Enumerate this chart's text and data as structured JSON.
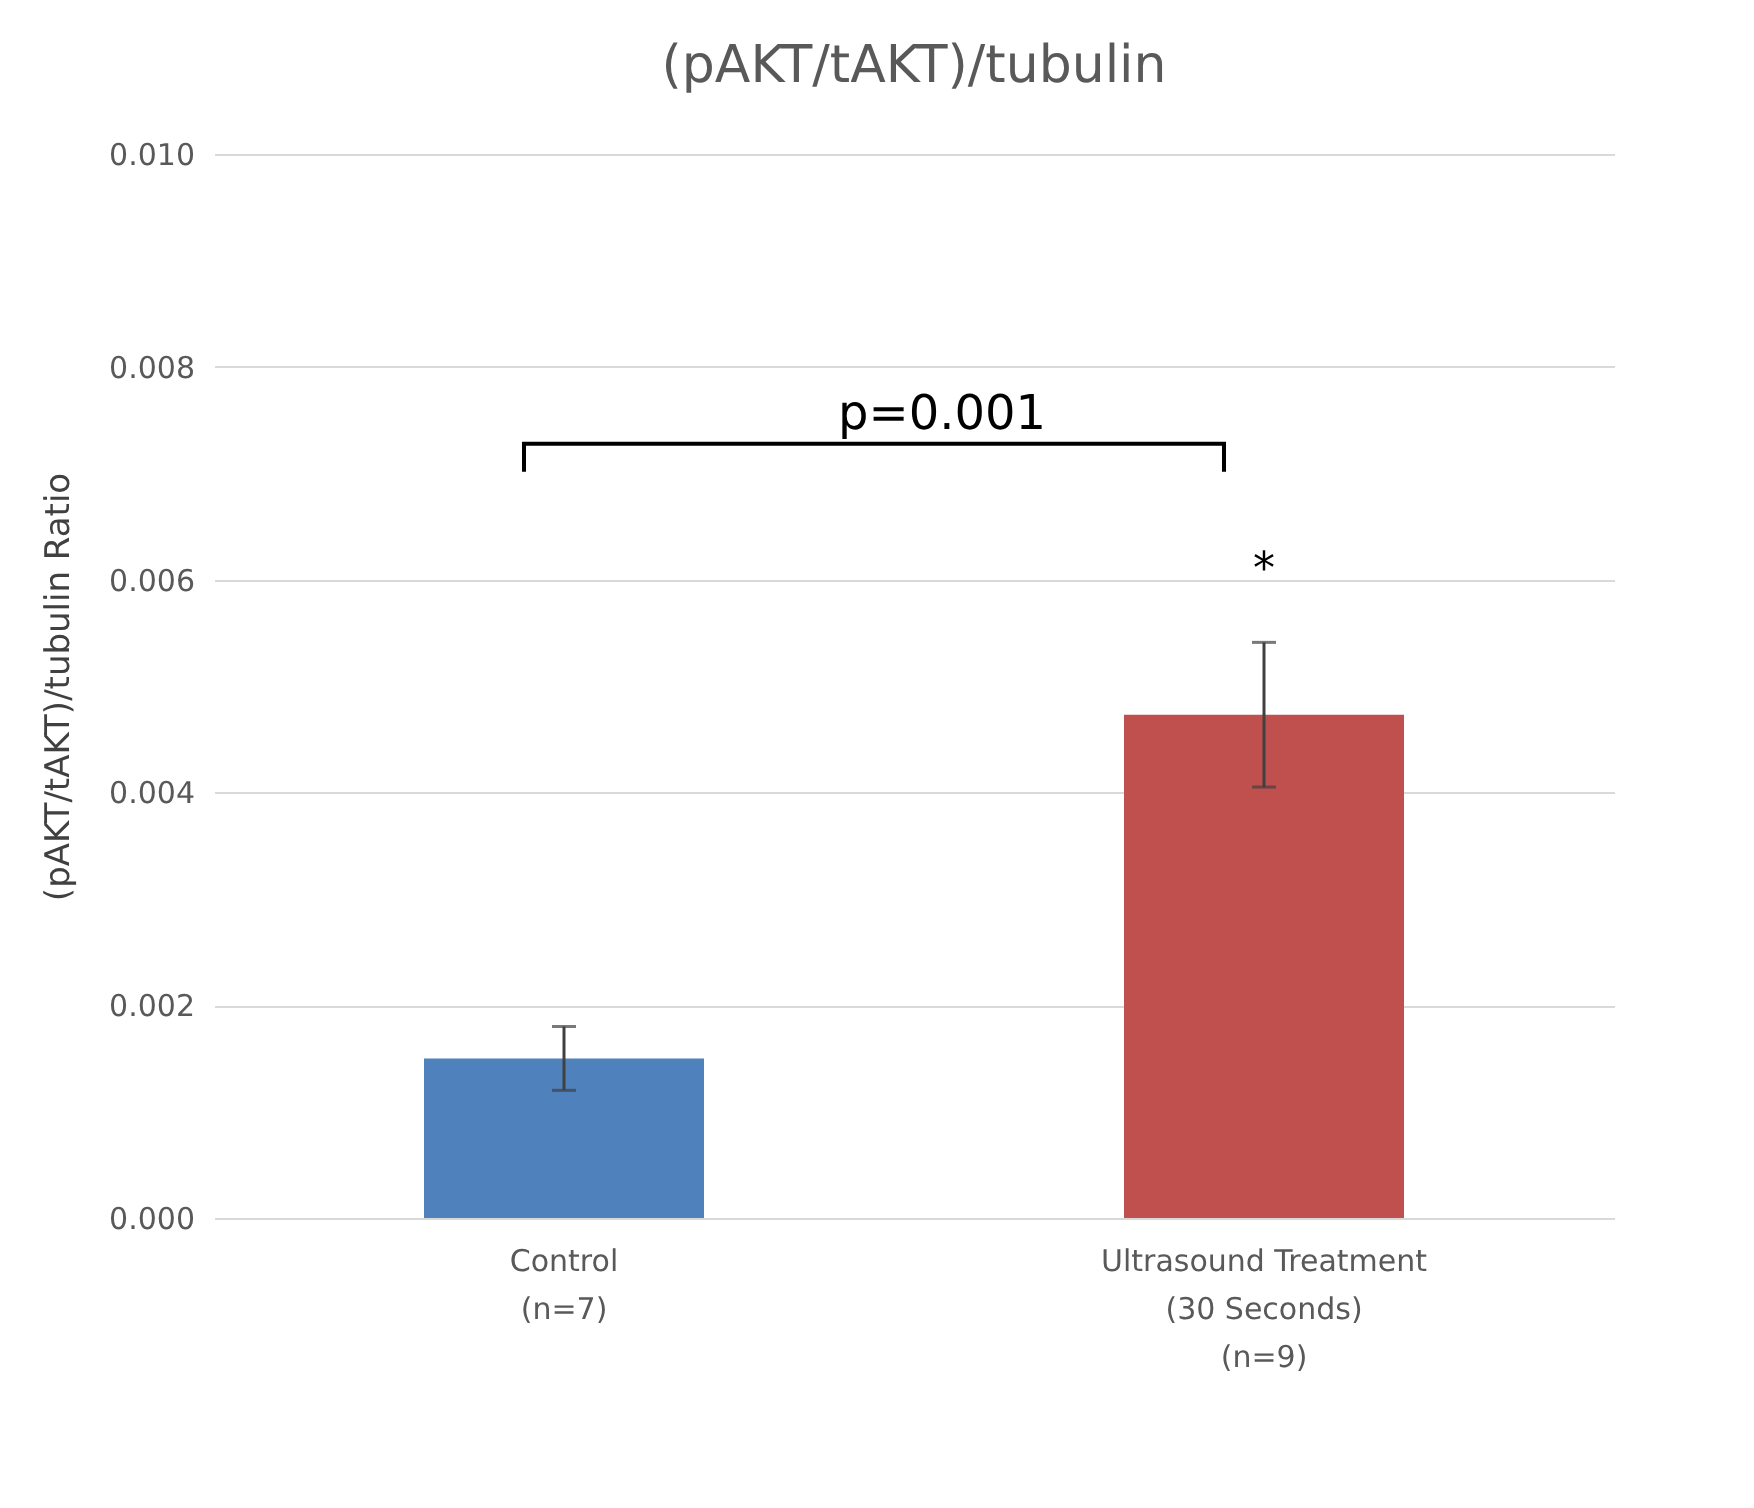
{
  "chart_data": {
    "type": "bar",
    "title": "(pAKT/tAKT)/tubulin",
    "ylabel": "(pAKT/tAKT)/tubulin Ratio",
    "categories": [
      "Control\n(n=7)",
      "Ultrasound Treatment\n(30 Seconds)\n(n=9)"
    ],
    "values": [
      0.0015,
      0.00473
    ],
    "colors": [
      "#4f81bd",
      "#c0504d"
    ],
    "errors": [
      0.0003,
      0.00068
    ],
    "ylim": [
      0,
      0.01
    ],
    "yticks": [
      {
        "value": 0,
        "label": "0.000"
      },
      {
        "value": 0.002,
        "label": "0.002"
      },
      {
        "value": 0.004,
        "label": "0.004"
      },
      {
        "value": 0.006,
        "label": "0.006"
      },
      {
        "value": 0.008,
        "label": "0.008"
      },
      {
        "value": 0.01,
        "label": "0.010"
      }
    ],
    "grid": "y",
    "annotations": [
      "p=0.001",
      "*"
    ]
  }
}
